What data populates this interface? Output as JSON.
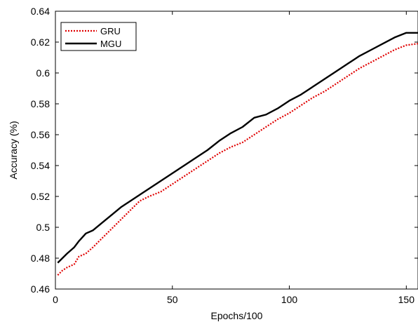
{
  "chart_data": {
    "type": "line",
    "title": "",
    "xlabel": "Epochs/100",
    "ylabel": "Accuracy (%)",
    "xlim": [
      0,
      155
    ],
    "ylim": [
      0.46,
      0.64
    ],
    "xticks": [
      0,
      50,
      100,
      150
    ],
    "yticks": [
      0.46,
      0.48,
      0.5,
      0.52,
      0.54,
      0.56,
      0.58,
      0.6,
      0.62,
      0.64
    ],
    "grid": false,
    "legend_position": "top-left",
    "series": [
      {
        "name": "GRU",
        "color": "#e00000",
        "style": "dotted",
        "x": [
          1,
          3,
          5,
          8,
          10,
          13,
          16,
          20,
          24,
          28,
          32,
          36,
          40,
          45,
          50,
          55,
          60,
          65,
          70,
          75,
          80,
          85,
          90,
          95,
          100,
          105,
          110,
          115,
          120,
          125,
          130,
          135,
          140,
          145,
          150,
          155
        ],
        "y": [
          0.469,
          0.472,
          0.474,
          0.476,
          0.481,
          0.483,
          0.487,
          0.493,
          0.499,
          0.505,
          0.511,
          0.517,
          0.52,
          0.523,
          0.528,
          0.533,
          0.538,
          0.543,
          0.548,
          0.552,
          0.555,
          0.56,
          0.565,
          0.57,
          0.574,
          0.579,
          0.584,
          0.588,
          0.593,
          0.598,
          0.603,
          0.607,
          0.611,
          0.615,
          0.618,
          0.619
        ]
      },
      {
        "name": "MGU",
        "color": "#000000",
        "style": "solid",
        "x": [
          1,
          3,
          5,
          8,
          10,
          13,
          16,
          20,
          24,
          28,
          32,
          36,
          40,
          45,
          50,
          55,
          60,
          65,
          70,
          75,
          80,
          85,
          90,
          95,
          100,
          105,
          110,
          115,
          120,
          125,
          130,
          135,
          140,
          145,
          150,
          155
        ],
        "y": [
          0.477,
          0.48,
          0.483,
          0.487,
          0.491,
          0.496,
          0.498,
          0.503,
          0.508,
          0.513,
          0.517,
          0.521,
          0.525,
          0.53,
          0.535,
          0.54,
          0.545,
          0.55,
          0.556,
          0.561,
          0.565,
          0.571,
          0.573,
          0.577,
          0.582,
          0.586,
          0.591,
          0.596,
          0.601,
          0.606,
          0.611,
          0.615,
          0.619,
          0.623,
          0.626,
          0.626
        ]
      }
    ]
  }
}
